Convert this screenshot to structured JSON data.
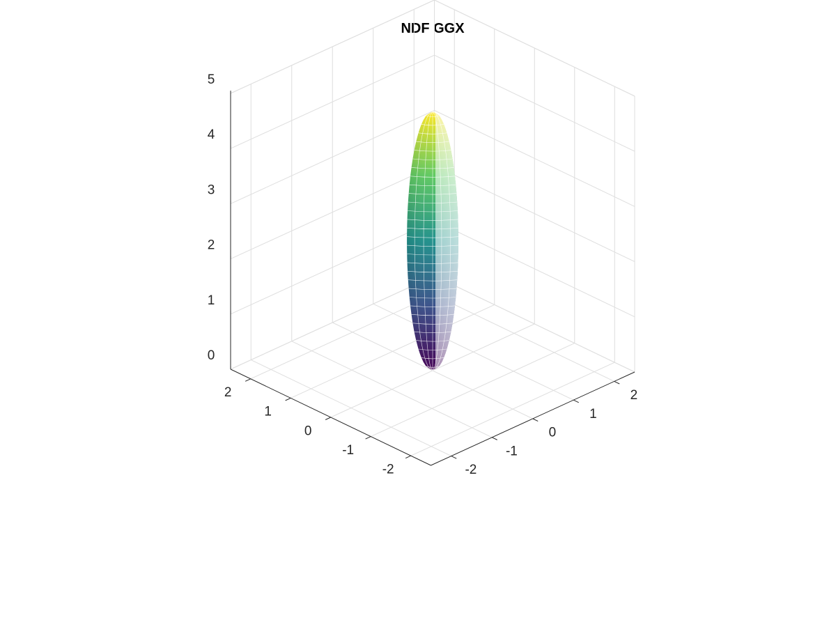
{
  "chart_data": {
    "type": "surface3d",
    "title": "NDF GGX",
    "xlabel": "",
    "ylabel": "",
    "zlabel": "",
    "xlim": [
      -2.5,
      2.5
    ],
    "ylim": [
      -2.5,
      2.5
    ],
    "zlim": [
      0,
      5
    ],
    "x_ticks": [
      -2,
      -1,
      0,
      1,
      2
    ],
    "y_ticks": [
      -2,
      -1,
      0,
      1,
      2
    ],
    "z_ticks": [
      0,
      1,
      2,
      3,
      4,
      5
    ],
    "x_tick_labels": [
      "-2",
      "-1",
      "0",
      "1",
      "2"
    ],
    "y_tick_labels": [
      "-2",
      "-1",
      "0",
      "1",
      "2"
    ],
    "z_tick_labels": [
      "0",
      "1",
      "2",
      "3",
      "4",
      "5"
    ],
    "grid": true,
    "colormap": "viridis",
    "colormap_stops": [
      "#440154",
      "#3b528b",
      "#21918c",
      "#5ec962",
      "#fde725"
    ],
    "shape": "ellipsoid lobe",
    "surface": {
      "base_z": 0,
      "peak_z": 4.7,
      "max_radius": 0.45,
      "max_radius_z": 2.4
    }
  }
}
